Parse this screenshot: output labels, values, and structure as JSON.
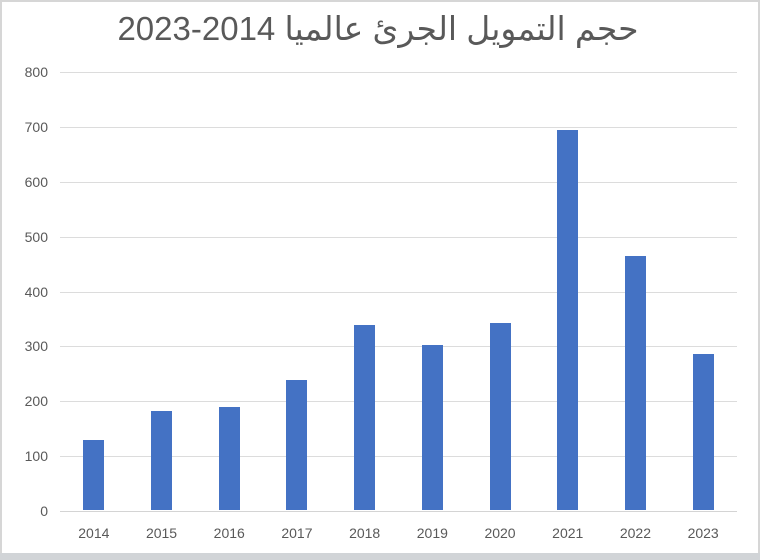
{
  "window": {
    "frame_border_color": "#d6d6d6",
    "bottom_bar_color": "#d1d4d7",
    "background": "#ffffff"
  },
  "chart_data": {
    "type": "bar",
    "title": "حجم التمويل الجرئ عالميا 2014-2023",
    "title_visual_order": "2023-2014 عالميا الجرئ التمويل حجم",
    "categories": [
      "2014",
      "2015",
      "2016",
      "2017",
      "2018",
      "2019",
      "2020",
      "2021",
      "2022",
      "2023"
    ],
    "values": [
      127,
      180,
      187,
      237,
      338,
      300,
      340,
      693,
      462,
      285
    ],
    "xlabel": "",
    "ylabel": "",
    "ylim": [
      0,
      800
    ],
    "yticks": [
      0,
      100,
      200,
      300,
      400,
      500,
      600,
      700,
      800
    ],
    "grid": "horizontal",
    "legend": "none",
    "bar_color": "#4472C4",
    "gridline_color": "#dcdcdc",
    "title_color": "#595959",
    "tick_label_color": "#595959"
  }
}
